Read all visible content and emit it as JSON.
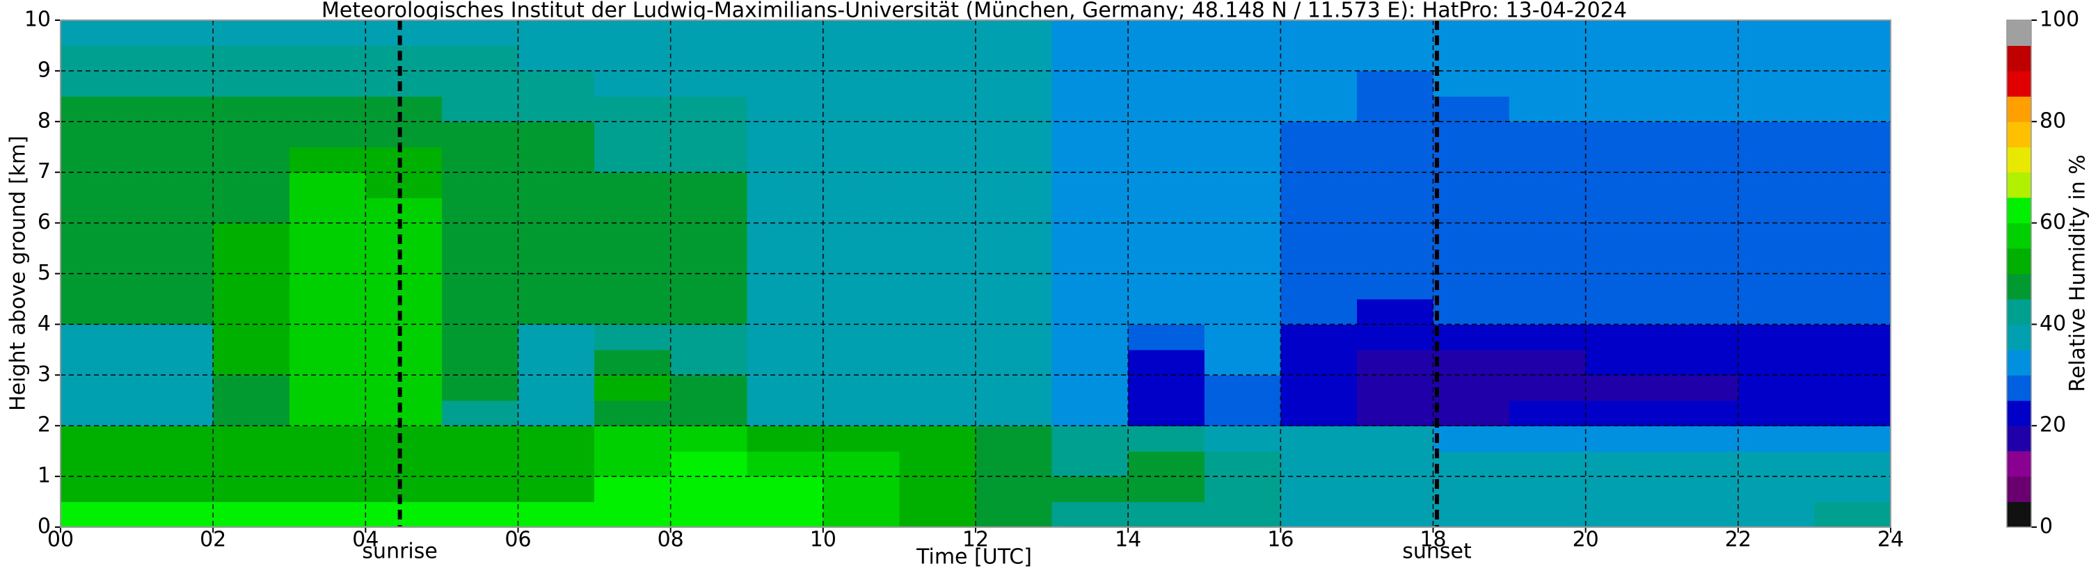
{
  "chart_data": {
    "type": "heatmap",
    "title": "Meteorologisches Institut der Ludwig-Maximilians-Universität (München, Germany; 48.148 N / 11.573 E):    HatPro: 13-04-2024",
    "xlabel": "Time [UTC]",
    "ylabel": "Height above ground [km]",
    "colorbar_label": "Relative Humidity in %",
    "xbins": [
      0,
      1,
      2,
      3,
      4,
      5,
      6,
      7,
      8,
      9,
      10,
      11,
      12,
      13,
      14,
      15,
      16,
      17,
      18,
      19,
      20,
      21,
      22,
      23,
      24
    ],
    "ybins": [
      0,
      0.5,
      1,
      1.5,
      2,
      2.5,
      3,
      3.5,
      4,
      4.5,
      5,
      5.5,
      6,
      6.5,
      7,
      7.5,
      8,
      8.5,
      9,
      9.5,
      10
    ],
    "values": [
      [
        62,
        62,
        62,
        62,
        62,
        62,
        62,
        60,
        62,
        62,
        58,
        50,
        45,
        44,
        42,
        40,
        38,
        38,
        38,
        38,
        38,
        38,
        38,
        40
      ],
      [
        52,
        52,
        52,
        52,
        52,
        52,
        52,
        60,
        64,
        62,
        55,
        50,
        45,
        46,
        48,
        40,
        38,
        38,
        37,
        37,
        37,
        37,
        37,
        37
      ],
      [
        52,
        52,
        52,
        52,
        52,
        52,
        52,
        58,
        60,
        58,
        55,
        52,
        46,
        44,
        46,
        40,
        38,
        37,
        37,
        37,
        37,
        37,
        37,
        37
      ],
      [
        50,
        50,
        50,
        50,
        50,
        50,
        50,
        56,
        56,
        54,
        52,
        50,
        46,
        42,
        42,
        38,
        36,
        35,
        34,
        34,
        34,
        34,
        34,
        34
      ],
      [
        38,
        38,
        45,
        55,
        55,
        40,
        38,
        48,
        45,
        38,
        38,
        38,
        36,
        30,
        22,
        28,
        20,
        19,
        19,
        20,
        20,
        20,
        20,
        20
      ],
      [
        38,
        38,
        48,
        56,
        56,
        45,
        38,
        50,
        45,
        38,
        38,
        38,
        36,
        30,
        22,
        28,
        20,
        18,
        18,
        18,
        18,
        19,
        20,
        20
      ],
      [
        38,
        38,
        50,
        57,
        57,
        48,
        38,
        46,
        44,
        38,
        38,
        38,
        36,
        32,
        24,
        30,
        22,
        18,
        18,
        19,
        20,
        21,
        21,
        21
      ],
      [
        38,
        38,
        50,
        57,
        57,
        48,
        38,
        44,
        44,
        38,
        38,
        38,
        36,
        33,
        26,
        30,
        24,
        21,
        20,
        22,
        23,
        24,
        24,
        24
      ],
      [
        48,
        48,
        50,
        57,
        57,
        48,
        47,
        46,
        46,
        38,
        38,
        38,
        36,
        33,
        30,
        30,
        26,
        24,
        25,
        27,
        28,
        28,
        29,
        29
      ],
      [
        48,
        48,
        50,
        57,
        57,
        48,
        47,
        46,
        46,
        38,
        38,
        38,
        36,
        33,
        31,
        30,
        27,
        25,
        26,
        28,
        29,
        29,
        29,
        29
      ],
      [
        48,
        48,
        50,
        57,
        57,
        48,
        47,
        46,
        46,
        38,
        38,
        38,
        36,
        33,
        31,
        30,
        27,
        25,
        26,
        28,
        29,
        29,
        29,
        29
      ],
      [
        48,
        48,
        50,
        57,
        57,
        48,
        47,
        46,
        46,
        38,
        38,
        38,
        36,
        33,
        31,
        30,
        27,
        25,
        26,
        28,
        29,
        29,
        29,
        29
      ],
      [
        48,
        48,
        48,
        57,
        56,
        48,
        47,
        46,
        46,
        38,
        38,
        38,
        36,
        33,
        31,
        30,
        27,
        26,
        26,
        28,
        29,
        29,
        29,
        29
      ],
      [
        48,
        48,
        48,
        56,
        54,
        48,
        47,
        45,
        45,
        38,
        38,
        38,
        36,
        33,
        31,
        30,
        28,
        26,
        27,
        28,
        29,
        29,
        29,
        29
      ],
      [
        48,
        48,
        48,
        52,
        50,
        48,
        47,
        44,
        44,
        38,
        38,
        38,
        36,
        33,
        31,
        30,
        28,
        27,
        28,
        29,
        29,
        29,
        29,
        29
      ],
      [
        47,
        47,
        47,
        48,
        47,
        46,
        45,
        42,
        42,
        38,
        38,
        38,
        36,
        33,
        31,
        30,
        29,
        28,
        28,
        29,
        29,
        29,
        29,
        29
      ],
      [
        46,
        46,
        46,
        48,
        46,
        44,
        42,
        40,
        40,
        38,
        38,
        38,
        36,
        34,
        32,
        31,
        30,
        28,
        29,
        30,
        30,
        30,
        30,
        30
      ],
      [
        44,
        44,
        44,
        44,
        44,
        42,
        40,
        38,
        38,
        38,
        38,
        38,
        36,
        34,
        32,
        31,
        30,
        29,
        30,
        30,
        30,
        30,
        30,
        30
      ],
      [
        40,
        40,
        40,
        40,
        40,
        40,
        38,
        38,
        38,
        38,
        38,
        38,
        36,
        34,
        32,
        31,
        30,
        30,
        30,
        30,
        30,
        30,
        30,
        30
      ],
      [
        38,
        38,
        38,
        38,
        38,
        38,
        38,
        38,
        38,
        38,
        38,
        38,
        36,
        34,
        32,
        31,
        31,
        31,
        31,
        31,
        31,
        31,
        31,
        31
      ]
    ],
    "xlim": [
      0,
      24
    ],
    "ylim": [
      0,
      10
    ],
    "clim": [
      0,
      100
    ],
    "xticks": [
      {
        "value": 0,
        "label": "00"
      },
      {
        "value": 2,
        "label": "02"
      },
      {
        "value": 4,
        "label": "04"
      },
      {
        "value": 6,
        "label": "06"
      },
      {
        "value": 8,
        "label": "08"
      },
      {
        "value": 10,
        "label": "10"
      },
      {
        "value": 12,
        "label": "12"
      },
      {
        "value": 14,
        "label": "14"
      },
      {
        "value": 16,
        "label": "16"
      },
      {
        "value": 18,
        "label": "18"
      },
      {
        "value": 20,
        "label": "20"
      },
      {
        "value": 22,
        "label": "22"
      },
      {
        "value": 24,
        "label": "24"
      }
    ],
    "yticks": [
      0,
      1,
      2,
      3,
      4,
      5,
      6,
      7,
      8,
      9,
      10
    ],
    "cticks": [
      0,
      20,
      40,
      60,
      80,
      100
    ],
    "colors": [
      "#111111",
      "#6a0070",
      "#8a0090",
      "#2000a8",
      "#0000c8",
      "#0060e0",
      "#0090e0",
      "#00a0b0",
      "#00a090",
      "#009a30",
      "#00b000",
      "#00d000",
      "#00f000",
      "#b0f000",
      "#e8e800",
      "#ffc000",
      "#ffa000",
      "#e00000",
      "#c00000",
      "#a0a0a0"
    ],
    "grid": true,
    "annotations": [
      {
        "x": 4.45,
        "label": "sunrise"
      },
      {
        "x": 18.05,
        "label": "sunset"
      }
    ]
  }
}
